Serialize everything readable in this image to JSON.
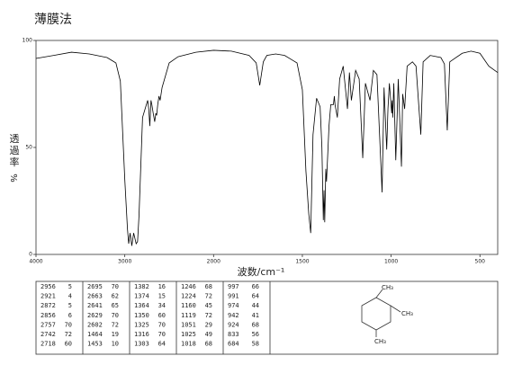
{
  "chart_data": {
    "type": "line",
    "title": "薄膜法",
    "y_label": "透過率",
    "y_unit": "%",
    "x_label": "波数/cm⁻¹",
    "x": [
      4000,
      3800,
      3600,
      3400,
      3200,
      3100,
      3050,
      3000,
      2970,
      2956,
      2940,
      2921,
      2900,
      2872,
      2856,
      2840,
      2800,
      2757,
      2742,
      2730,
      2718,
      2705,
      2695,
      2680,
      2663,
      2650,
      2641,
      2629,
      2615,
      2602,
      2580,
      2500,
      2400,
      2200,
      2000,
      1900,
      1800,
      1760,
      1740,
      1720,
      1700,
      1650,
      1600,
      1560,
      1530,
      1500,
      1480,
      1464,
      1453,
      1440,
      1420,
      1400,
      1390,
      1382,
      1378,
      1374,
      1368,
      1364,
      1350,
      1340,
      1325,
      1320,
      1316,
      1303,
      1290,
      1270,
      1246,
      1235,
      1224,
      1200,
      1180,
      1160,
      1145,
      1119,
      1100,
      1080,
      1051,
      1040,
      1025,
      1018,
      1010,
      997,
      994,
      991,
      985,
      974,
      960,
      942,
      935,
      924,
      910,
      880,
      860,
      833,
      820,
      780,
      720,
      700,
      684,
      670,
      600,
      550,
      500,
      450,
      400
    ],
    "values": [
      91.6,
      93,
      94.5,
      93.7,
      92,
      89.5,
      81,
      35,
      12,
      5,
      10,
      4,
      10,
      5,
      6,
      18,
      64,
      70,
      72,
      68,
      60,
      72,
      70,
      66,
      62,
      66,
      65,
      70,
      74,
      72,
      78,
      89.5,
      92.4,
      94.5,
      95.4,
      95,
      93,
      89.5,
      79,
      90,
      93,
      93.7,
      93,
      91,
      89.5,
      77,
      39,
      19,
      10,
      56,
      73,
      69,
      50,
      16,
      30,
      15,
      40,
      34,
      60,
      70,
      70,
      74,
      70,
      64,
      82,
      88,
      68,
      85,
      72,
      86,
      82,
      45,
      80,
      72,
      86,
      84,
      29,
      78,
      49,
      68,
      80,
      66,
      72,
      64,
      80,
      44,
      82,
      41,
      75,
      68,
      88,
      90,
      88,
      56,
      90,
      93,
      92,
      89,
      58,
      90,
      94,
      95,
      94,
      88,
      85
    ],
    "color": "#000000",
    "xlim": [
      4000,
      400
    ],
    "xticks": [
      4000,
      3000,
      2000,
      1500,
      1000,
      500
    ],
    "ylim": [
      0,
      100
    ],
    "yticks": [
      0,
      50,
      100
    ]
  },
  "peak_table": {
    "columns": [
      [
        [
          2956,
          5
        ],
        [
          2921,
          4
        ],
        [
          2872,
          5
        ],
        [
          2856,
          6
        ],
        [
          2757,
          70
        ],
        [
          2742,
          72
        ],
        [
          2718,
          60
        ]
      ],
      [
        [
          2695,
          70
        ],
        [
          2663,
          62
        ],
        [
          2641,
          65
        ],
        [
          2629,
          70
        ],
        [
          2602,
          72
        ],
        [
          1464,
          19
        ],
        [
          1453,
          10
        ]
      ],
      [
        [
          1382,
          16
        ],
        [
          1374,
          15
        ],
        [
          1364,
          34
        ],
        [
          1350,
          60
        ],
        [
          1325,
          70
        ],
        [
          1316,
          70
        ],
        [
          1303,
          64
        ]
      ],
      [
        [
          1246,
          68
        ],
        [
          1224,
          72
        ],
        [
          1160,
          45
        ],
        [
          1119,
          72
        ],
        [
          1051,
          29
        ],
        [
          1025,
          49
        ],
        [
          1018,
          68
        ]
      ],
      [
        [
          997,
          66
        ],
        [
          991,
          64
        ],
        [
          974,
          44
        ],
        [
          942,
          41
        ],
        [
          924,
          68
        ],
        [
          833,
          56
        ],
        [
          684,
          58
        ]
      ]
    ]
  },
  "structure": {
    "labels": [
      "CH₃",
      "CH₃",
      "CH₃"
    ]
  }
}
